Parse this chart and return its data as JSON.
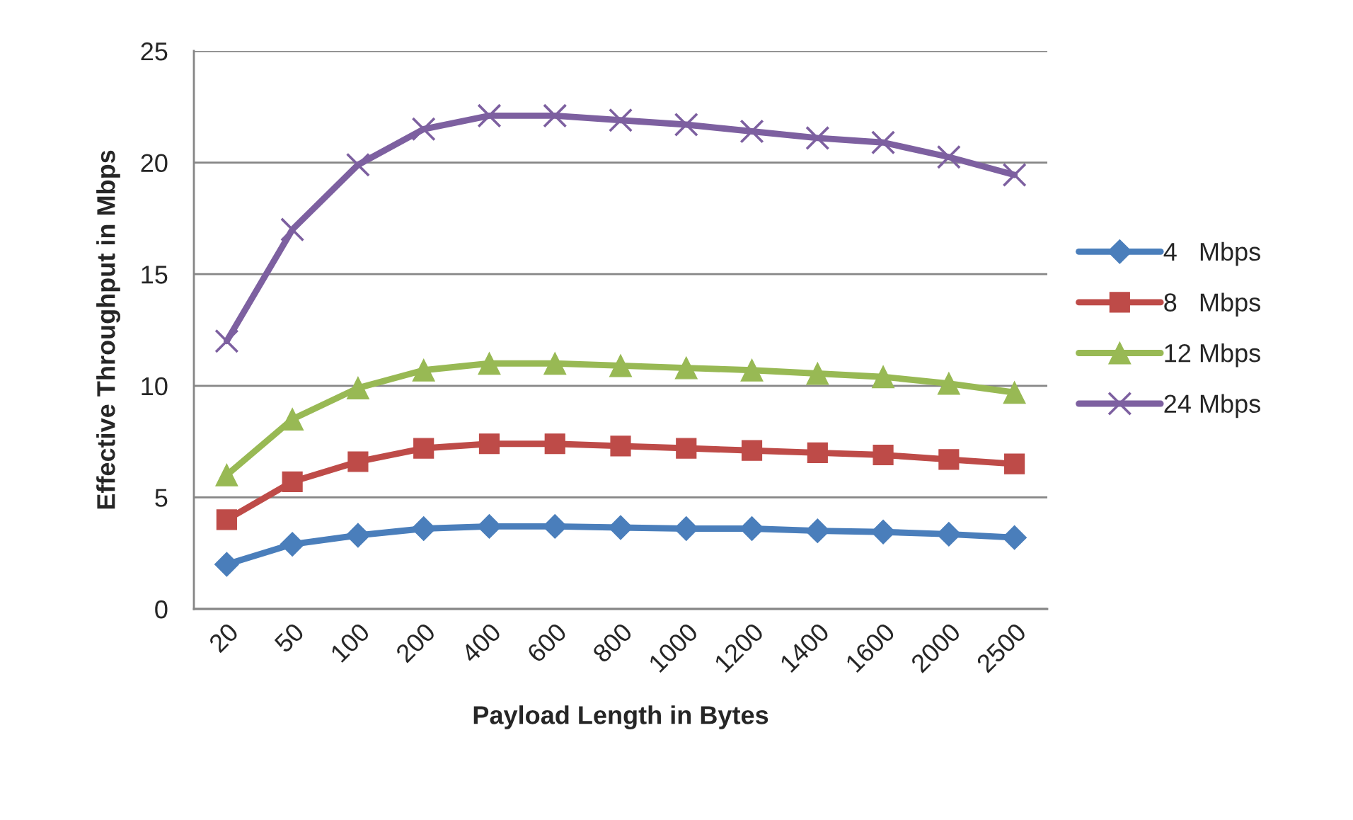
{
  "chart_data": {
    "type": "line",
    "xlabel": "Payload Length in Bytes",
    "ylabel": "Effective Throughput in Mbps",
    "categories": [
      "20",
      "50",
      "100",
      "200",
      "400",
      "600",
      "800",
      "1000",
      "1200",
      "1400",
      "1600",
      "2000",
      "2500"
    ],
    "ylim": [
      0,
      25
    ],
    "yticks": [
      0,
      5,
      10,
      15,
      20,
      25
    ],
    "grid": "y",
    "legend": "right",
    "line_style": "solid",
    "series": [
      {
        "name": "4   Mbps",
        "color": "#4a7ebb",
        "marker": "diamond",
        "values": [
          2.0,
          2.9,
          3.3,
          3.6,
          3.7,
          3.7,
          3.65,
          3.6,
          3.6,
          3.5,
          3.45,
          3.35,
          3.2
        ]
      },
      {
        "name": "8   Mbps",
        "color": "#be4b48",
        "marker": "square",
        "values": [
          4.0,
          5.7,
          6.6,
          7.2,
          7.4,
          7.4,
          7.3,
          7.2,
          7.1,
          7.0,
          6.9,
          6.7,
          6.5
        ]
      },
      {
        "name": "12 Mbps",
        "color": "#98b954",
        "marker": "triangle",
        "values": [
          6.0,
          8.5,
          9.9,
          10.7,
          11.0,
          11.0,
          10.9,
          10.8,
          10.7,
          10.55,
          10.4,
          10.1,
          9.7
        ]
      },
      {
        "name": "24 Mbps",
        "color": "#7d60a0",
        "marker": "cross",
        "values": [
          12.0,
          17.0,
          19.9,
          21.5,
          22.1,
          22.1,
          21.9,
          21.7,
          21.4,
          21.1,
          20.9,
          20.25,
          19.45
        ]
      }
    ]
  }
}
